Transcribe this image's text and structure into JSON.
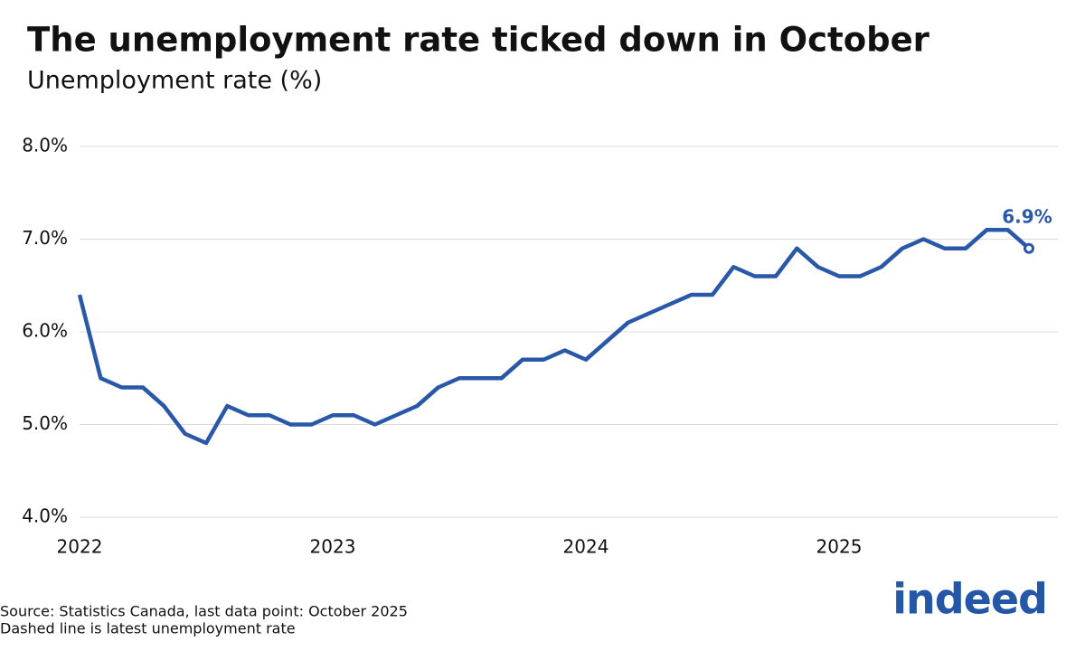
{
  "chart_data": {
    "type": "line",
    "title": "The unemployment rate ticked down in October",
    "subtitle": "Unemployment rate (%)",
    "categories": [
      "2022",
      null,
      null,
      null,
      null,
      null,
      null,
      null,
      null,
      null,
      null,
      null,
      "2023",
      null,
      null,
      null,
      null,
      null,
      null,
      null,
      null,
      null,
      null,
      null,
      "2024",
      null,
      null,
      null,
      null,
      null,
      null,
      null,
      null,
      null,
      null,
      null,
      "2025",
      null,
      null,
      null,
      null,
      null,
      null,
      null,
      null,
      null
    ],
    "series": [
      {
        "name": "Unemployment rate",
        "color": "#2a58a8",
        "values": [
          6.4,
          5.5,
          5.4,
          5.4,
          5.2,
          4.9,
          4.8,
          5.2,
          5.1,
          5.1,
          5.0,
          5.0,
          5.1,
          5.1,
          5.0,
          5.1,
          5.2,
          5.4,
          5.5,
          5.5,
          5.5,
          5.7,
          5.7,
          5.8,
          5.7,
          5.9,
          6.1,
          6.2,
          6.3,
          6.4,
          6.4,
          6.7,
          6.6,
          6.6,
          6.9,
          6.7,
          6.6,
          6.6,
          6.7,
          6.9,
          7.0,
          6.9,
          6.9,
          7.1,
          7.1,
          6.9
        ],
        "value_labels": [
          null,
          null,
          null,
          null,
          null,
          null,
          null,
          null,
          null,
          null,
          null,
          null,
          null,
          null,
          null,
          null,
          null,
          null,
          null,
          null,
          null,
          null,
          null,
          null,
          null,
          null,
          null,
          null,
          null,
          null,
          null,
          null,
          null,
          null,
          null,
          null,
          null,
          null,
          null,
          null,
          null,
          null,
          null,
          null,
          null,
          "6.9%"
        ]
      }
    ],
    "ylim": [
      4,
      8
    ],
    "yticks": [
      {
        "value": 4,
        "label": "4.0%"
      },
      {
        "value": 5,
        "label": "5.0%"
      },
      {
        "value": 6,
        "label": "6.0%"
      },
      {
        "value": 7,
        "label": "7.0%"
      },
      {
        "value": 8,
        "label": "8.0%"
      }
    ],
    "grid": true,
    "source": "Source: Statistics Canada, last data point: October 2025",
    "note": "Dashed line is latest unemployment rate",
    "logo": "indeed"
  }
}
